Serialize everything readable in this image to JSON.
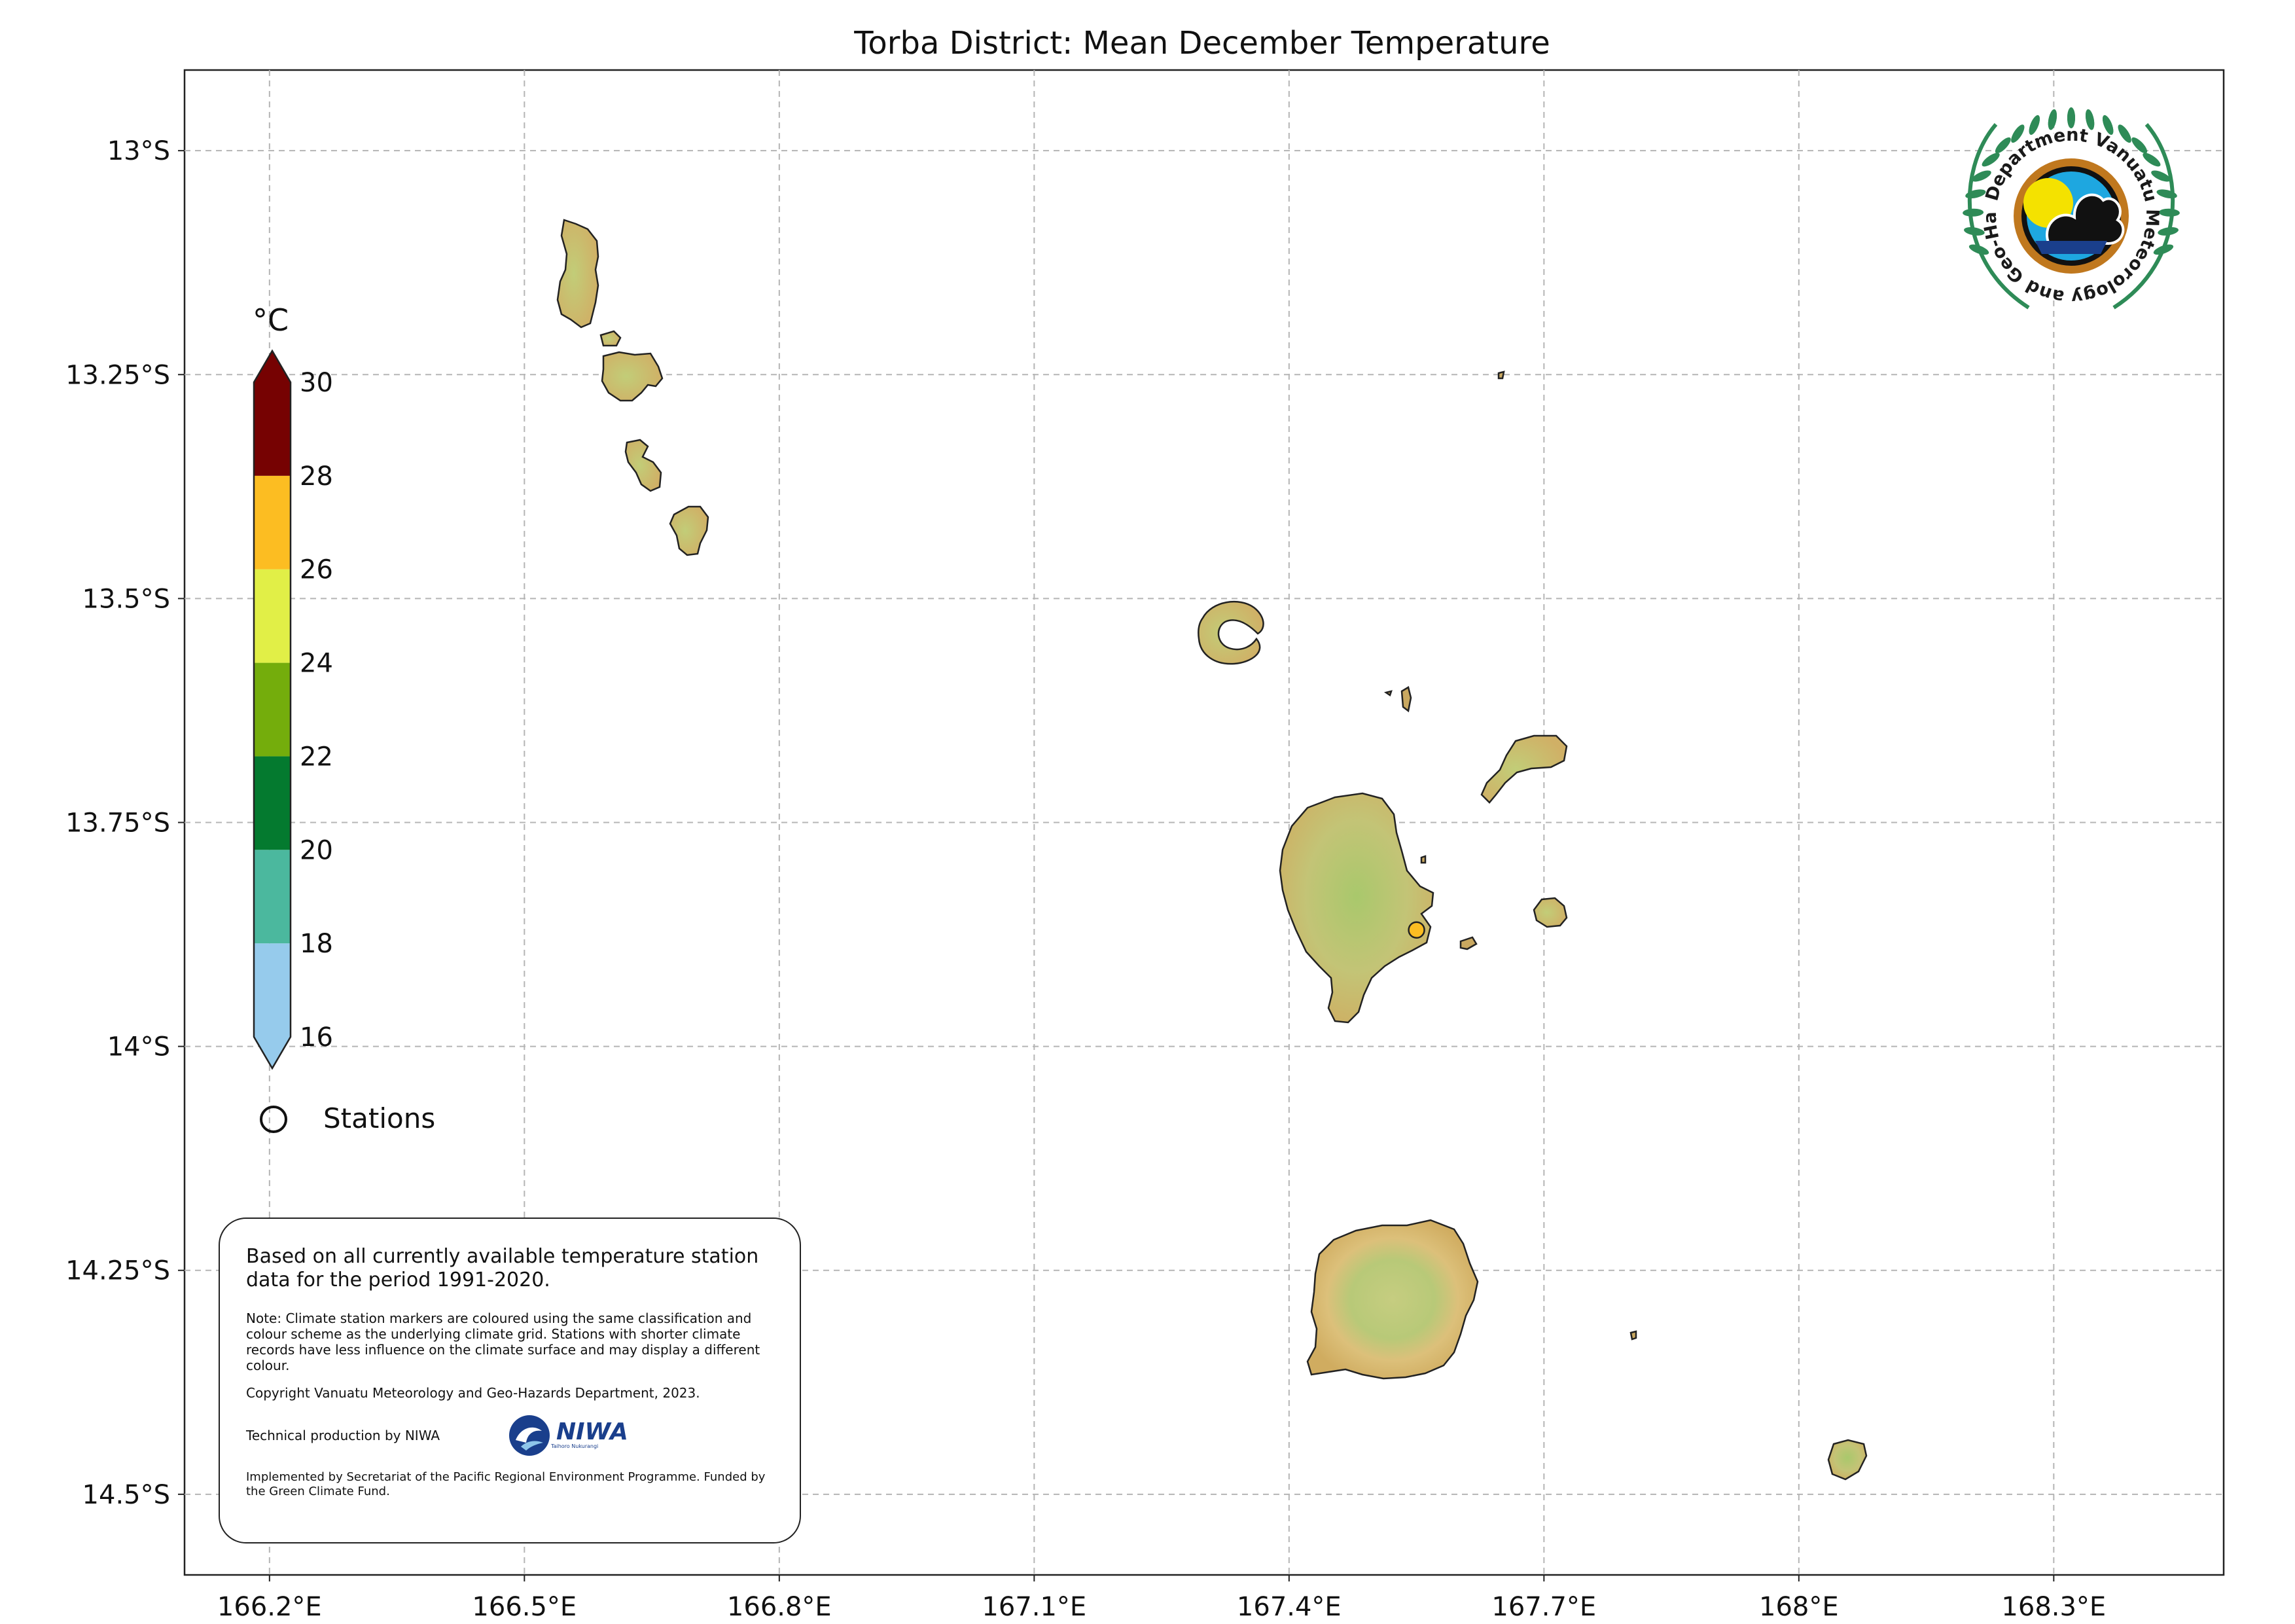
{
  "title": "Torba District: Mean December Temperature",
  "axes": {
    "lon_ticks": [
      "166.2°E",
      "166.5°E",
      "166.8°E",
      "167.1°E",
      "167.4°E",
      "167.7°E",
      "168°E",
      "168.3°E"
    ],
    "lat_ticks": [
      "13°S",
      "13.25°S",
      "13.5°S",
      "13.75°S",
      "14°S",
      "14.25°S",
      "14.5°S"
    ],
    "lon_range": [
      166.1,
      168.5
    ],
    "lat_range": [
      -14.59,
      -12.91
    ],
    "grid": true
  },
  "colorbar": {
    "unit": "°C",
    "ticks": [
      "16",
      "18",
      "20",
      "22",
      "24",
      "26",
      "28",
      "30"
    ],
    "bins": [
      {
        "from": 16,
        "to": 18,
        "color": "#96cbec"
      },
      {
        "from": 18,
        "to": 20,
        "color": "#4bb89e"
      },
      {
        "from": 20,
        "to": 22,
        "color": "#047a2f"
      },
      {
        "from": 22,
        "to": 24,
        "color": "#74ad0c"
      },
      {
        "from": 24,
        "to": 26,
        "color": "#e1ef47"
      },
      {
        "from": 26,
        "to": 28,
        "color": "#fcbd22"
      },
      {
        "from": 28,
        "to": 30,
        "color": "#760202"
      }
    ],
    "extend": "both"
  },
  "legend": {
    "stations_label": "Stations"
  },
  "stations": [
    {
      "lon": 167.55,
      "lat": -13.87,
      "color": "#fcbd22"
    }
  ],
  "info_box": {
    "main": "Based on all currently available temperature station data for the period 1991-2020.",
    "note": "Note: Climate station markers are coloured using the same classification and colour scheme as the underlying climate grid. Stations with shorter climate records have less influence on the climate surface and may display a different colour.",
    "copyright": "Copyright Vanuatu Meteorology and Geo-Hazards Department, 2023.",
    "technical": "Technical production by NIWA",
    "niwa_name": "NIWA",
    "niwa_tagline": "Taihoro Nukurangi",
    "implemented": "Implemented by Secretariat of the Pacific Regional Environment Programme. Funded by the Green Climate Fund."
  },
  "logo": {
    "text": "Department Vanuatu Meteorology and Geo-Hazards"
  },
  "colors": {
    "land_low": "#cfb46a",
    "land_mid": "#c9c36f",
    "land_high": "#aec56a",
    "wreath": "#2e8b57"
  }
}
